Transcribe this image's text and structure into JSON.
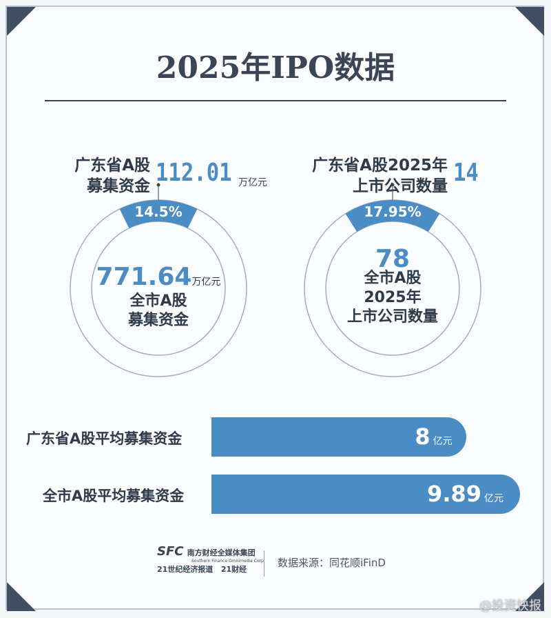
{
  "title": "2025年IPO数据",
  "left": {
    "label_line1": "广东省A股",
    "label_line2": "募集资金",
    "value": "112.01",
    "unit": "万亿元",
    "percent_label": "14.5%",
    "center_value": "771.64",
    "center_unit": "万亿元",
    "center_line1": "全市A股",
    "center_line2": "募集资金"
  },
  "right": {
    "label_line1": "广东省A股2025年",
    "label_line2": "上市公司数量",
    "value": "14",
    "percent_label": "17.95%",
    "center_value": "78",
    "center_line1": "全市A股",
    "center_line2": "2025年",
    "center_line3": "上市公司数量"
  },
  "bars": [
    {
      "label": "广东省A股平均募集资金",
      "value": "8",
      "unit": "亿元"
    },
    {
      "label": "全市A股平均募集资金",
      "value": "9.89",
      "unit": "亿元"
    }
  ],
  "footer": {
    "logo_sfc": "SFC",
    "logo_group": "南方财经全媒体集团",
    "logo_group_en": "Southern Finance Omnimedia Corp.",
    "logo_21": "21世纪经济报道",
    "logo_21cj": "21财经",
    "source": "数据来源：同花顺iFinD",
    "watermark": "@投资快报"
  },
  "colors": {
    "accent": "#4a8cc4",
    "dark": "#3a4556"
  },
  "chart_data": [
    {
      "type": "pie",
      "subtype": "donut",
      "slices": [
        {
          "label": "广东省A股募集资金",
          "value": 112.01,
          "percent": 14.5
        },
        {
          "label": "全市A股募集资金",
          "value": 771.64
        }
      ]
    },
    {
      "type": "pie",
      "subtype": "donut",
      "slices": [
        {
          "label": "广东省A股2025年上市公司数量",
          "value": 14,
          "percent": 17.95
        },
        {
          "label": "全市A股2025年上市公司数量",
          "value": 78
        }
      ]
    },
    {
      "type": "bar",
      "orientation": "horizontal",
      "categories": [
        "广东省A股平均募集资金",
        "全市A股平均募集资金"
      ],
      "values": [
        8,
        9.89
      ],
      "unit": "亿元"
    }
  ]
}
